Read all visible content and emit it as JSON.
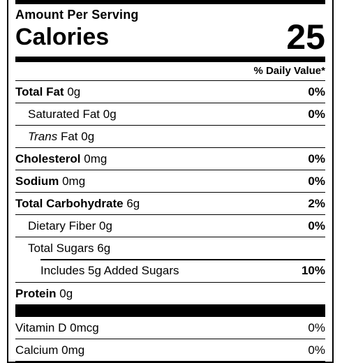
{
  "label": {
    "amount_per_serving": "Amount Per Serving",
    "calories_label": "Calories",
    "calories_value": "25",
    "daily_value_header": "% Daily Value*",
    "nutrients": [
      {
        "name": "Total Fat",
        "amount": "0g",
        "dv": "0%"
      },
      {
        "name": "Saturated Fat",
        "amount": "0g",
        "dv": "0%"
      },
      {
        "name_italic": "Trans",
        "name": "Fat",
        "amount": "0g",
        "dv": ""
      },
      {
        "name": "Cholesterol",
        "amount": "0mg",
        "dv": "0%"
      },
      {
        "name": "Sodium",
        "amount": "0mg",
        "dv": "0%"
      },
      {
        "name": "Total Carbohydrate",
        "amount": "6g",
        "dv": "2%"
      },
      {
        "name": "Dietary Fiber",
        "amount": "0g",
        "dv": "0%"
      },
      {
        "name": "Total Sugars",
        "amount": "6g",
        "dv": ""
      },
      {
        "name": "Includes 5g Added Sugars",
        "amount": "",
        "dv": "10%"
      },
      {
        "name": "Protein",
        "amount": "0g",
        "dv": ""
      }
    ],
    "vitamins": [
      {
        "name": "Vitamin D",
        "amount": "0mcg",
        "dv": "0%"
      },
      {
        "name": "Calcium",
        "amount": "0mg",
        "dv": "0%"
      }
    ]
  }
}
